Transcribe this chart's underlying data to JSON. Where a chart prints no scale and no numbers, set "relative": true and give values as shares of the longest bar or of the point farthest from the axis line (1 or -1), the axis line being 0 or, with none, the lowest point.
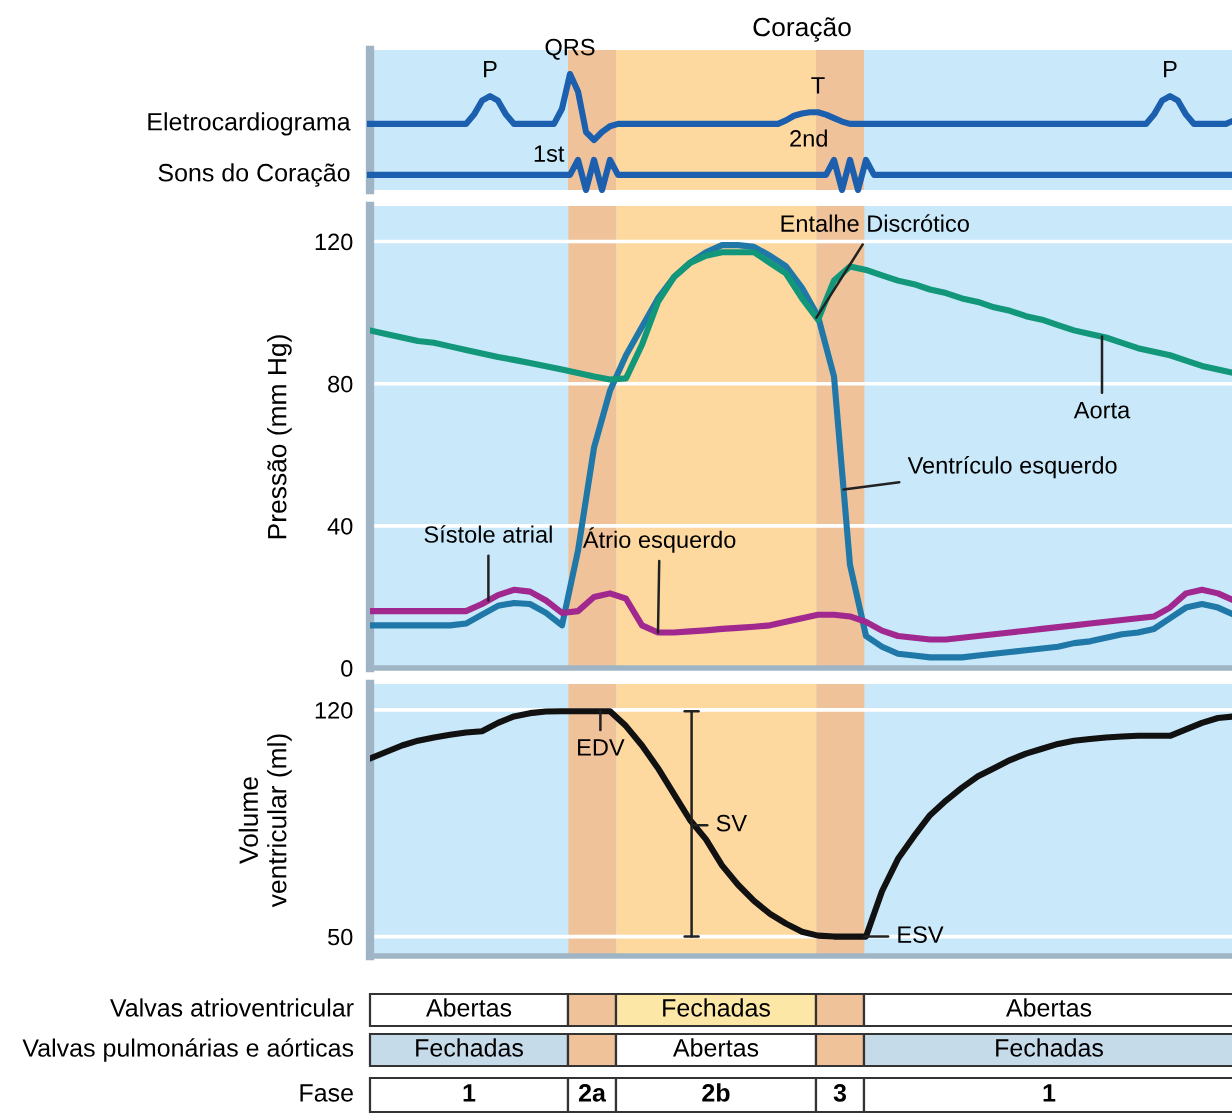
{
  "chart_data": [
    {
      "type": "line",
      "title": "Coração",
      "relative": true,
      "tick_labels": false,
      "categories": [
        null,
        null,
        null,
        null,
        null,
        null,
        null,
        null,
        null,
        null,
        null,
        null,
        null,
        null,
        null,
        null,
        null,
        null,
        null,
        null,
        null,
        null,
        null,
        null,
        null,
        null,
        null,
        null,
        null,
        null,
        null,
        null,
        null,
        null,
        null,
        null,
        null,
        null,
        null,
        null,
        null,
        null,
        null,
        null,
        null,
        null,
        null,
        null,
        null,
        null,
        null,
        null,
        null,
        null,
        null,
        null,
        null,
        null,
        null,
        null,
        null,
        null,
        null,
        null,
        null,
        null,
        null,
        null,
        null,
        null,
        null,
        null,
        null,
        null,
        null,
        null,
        null,
        null,
        null,
        null,
        null,
        null,
        null,
        null,
        null,
        null,
        null,
        null,
        null,
        null,
        null,
        null,
        null,
        null,
        null,
        null,
        null,
        null,
        null,
        null,
        null,
        null,
        null,
        null,
        null,
        null,
        null,
        null,
        null
      ],
      "series": [
        {
          "name": "Eletrocardiograma",
          "color": "#1b5fae",
          "values": [
            0.57,
            0.57,
            0.57,
            0.57,
            0.57,
            0.57,
            0.57,
            0.57,
            0.57,
            0.57,
            0.57,
            0.57,
            0.57,
            0.65,
            0.77,
            0.81,
            0.77,
            0.65,
            0.57,
            0.57,
            0.57,
            0.57,
            0.57,
            0.57,
            0.7,
            1.0,
            0.85,
            0.5,
            0.43,
            0.5,
            0.55,
            0.57,
            0.57,
            0.57,
            0.57,
            0.57,
            0.57,
            0.57,
            0.57,
            0.57,
            0.57,
            0.57,
            0.57,
            0.57,
            0.57,
            0.57,
            0.57,
            0.57,
            0.57,
            0.57,
            0.57,
            0.57,
            0.6,
            0.64,
            0.66,
            0.67,
            0.67,
            0.65,
            0.62,
            0.59,
            0.57,
            0.57,
            0.57,
            0.57,
            0.57,
            0.57,
            0.57,
            0.57,
            0.57,
            0.57,
            0.57,
            0.57,
            0.57,
            0.57,
            0.57,
            0.57,
            0.57,
            0.57,
            0.57,
            0.57,
            0.57,
            0.57,
            0.57,
            0.57,
            0.57,
            0.57,
            0.57,
            0.57,
            0.57,
            0.57,
            0.57,
            0.57,
            0.57,
            0.57,
            0.57,
            0.57,
            0.57,
            0.57,
            0.65,
            0.77,
            0.81,
            0.77,
            0.65,
            0.57,
            0.57,
            0.57,
            0.57,
            0.57,
            0.6
          ]
        },
        {
          "name": "Sons do Coração",
          "color": "#1b5fae",
          "values": [
            0.13,
            0.13,
            0.13,
            0.13,
            0.13,
            0.13,
            0.13,
            0.13,
            0.13,
            0.13,
            0.13,
            0.13,
            0.13,
            0.13,
            0.13,
            0.13,
            0.13,
            0.13,
            0.13,
            0.13,
            0.13,
            0.13,
            0.13,
            0.13,
            0.13,
            0.13,
            0.26,
            0,
            0.26,
            0,
            0.26,
            0.13,
            0.13,
            0.13,
            0.13,
            0.13,
            0.13,
            0.13,
            0.13,
            0.13,
            0.13,
            0.13,
            0.13,
            0.13,
            0.13,
            0.13,
            0.13,
            0.13,
            0.13,
            0.13,
            0.13,
            0.13,
            0.13,
            0.13,
            0.13,
            0.13,
            0.13,
            0.13,
            0.26,
            0,
            0.26,
            0,
            0.26,
            0.13,
            0.13,
            0.13,
            0.13,
            0.13,
            0.13,
            0.13,
            0.13,
            0.13,
            0.13,
            0.13,
            0.13,
            0.13,
            0.13,
            0.13,
            0.13,
            0.13,
            0.13,
            0.13,
            0.13,
            0.13,
            0.13,
            0.13,
            0.13,
            0.13,
            0.13,
            0.13,
            0.13,
            0.13,
            0.13,
            0.13,
            0.13,
            0.13,
            0.13,
            0.13,
            0.13,
            0.13,
            0.13,
            0.13,
            0.13,
            0.13,
            0.13,
            0.13,
            0.13,
            0.13,
            0.13
          ]
        }
      ],
      "annotations": [
        "P",
        "QRS",
        "T",
        "P",
        "1st",
        "2nd"
      ]
    },
    {
      "type": "line",
      "ylabel": "Pressão (mm Hg)",
      "ylim": [
        0,
        130
      ],
      "yticks": [
        0,
        40,
        80,
        120
      ],
      "grid": "y",
      "tick_labels": "y",
      "categories": [
        null,
        null,
        null,
        null,
        null,
        null,
        null,
        null,
        null,
        null,
        null,
        null,
        null,
        null,
        null,
        null,
        null,
        null,
        null,
        null,
        null,
        null,
        null,
        null,
        null,
        null,
        null,
        null,
        null,
        null,
        null,
        null,
        null,
        null,
        null,
        null,
        null,
        null,
        null,
        null,
        null,
        null,
        null,
        null,
        null,
        null,
        null,
        null,
        null,
        null,
        null,
        null,
        null,
        null,
        null
      ],
      "series": [
        {
          "name": "Aorta",
          "color": "#12977a",
          "values": [
            95,
            94,
            93,
            92,
            91.5,
            90.5,
            89.5,
            88.5,
            87.5,
            86.7,
            85.8,
            84.9,
            84,
            83,
            82,
            81.2,
            81.5,
            91,
            103,
            110,
            114,
            116,
            117,
            117,
            117,
            114,
            111,
            104,
            98,
            109,
            113,
            112,
            110.5,
            109,
            108,
            106.5,
            105.5,
            104,
            103,
            101.5,
            100.5,
            99,
            98,
            96.5,
            95,
            94,
            93,
            91.5,
            90,
            89,
            88,
            86.5,
            85,
            84,
            83
          ]
        },
        {
          "name": "Ventrículo esquerdo",
          "color": "#1f78a8",
          "values": [
            12,
            12,
            12,
            12,
            12,
            12,
            12.5,
            15,
            17.5,
            18.3,
            18,
            15.5,
            12,
            33,
            62,
            78,
            88,
            96,
            104,
            110,
            114,
            117,
            119,
            119,
            118.5,
            116,
            113,
            107,
            99,
            82,
            29,
            9,
            6,
            4,
            3.5,
            3,
            3,
            3,
            3.5,
            4,
            4.5,
            5,
            5.5,
            6,
            7,
            7.5,
            8.5,
            9.5,
            10,
            11,
            14,
            17,
            18,
            17,
            15
          ]
        },
        {
          "name": "Átrio esquerdo",
          "color": "#a0288f",
          "values": [
            16,
            16,
            16,
            16,
            16,
            16,
            16,
            18,
            20.5,
            22,
            21.5,
            19,
            15.5,
            16,
            20,
            21,
            19.5,
            12,
            10,
            10,
            10.3,
            10.6,
            11,
            11.3,
            11.6,
            12,
            13,
            14,
            15,
            15,
            14.5,
            13,
            10.5,
            9,
            8.5,
            8,
            8,
            8.5,
            9,
            9.5,
            10,
            10.5,
            11,
            11.5,
            12,
            12.5,
            13,
            13.5,
            14,
            14.5,
            17,
            21,
            22,
            21,
            19
          ]
        }
      ],
      "annotations": [
        "Entalhe Discrótico",
        "Sístole atrial"
      ]
    },
    {
      "type": "line",
      "ylabel": "Volume\nventricular (ml)",
      "ylim": [
        44,
        128
      ],
      "yticks": [
        50,
        120
      ],
      "grid": "y",
      "tick_labels": "y",
      "categories": [
        null,
        null,
        null,
        null,
        null,
        null,
        null,
        null,
        null,
        null,
        null,
        null,
        null,
        null,
        null,
        null,
        null,
        null,
        null,
        null,
        null,
        null,
        null,
        null,
        null,
        null,
        null,
        null,
        null,
        null,
        null,
        null,
        null,
        null,
        null,
        null,
        null,
        null,
        null,
        null,
        null,
        null,
        null,
        null,
        null,
        null,
        null,
        null,
        null,
        null,
        null,
        null,
        null,
        null,
        null
      ],
      "series": [
        {
          "color": "#111111",
          "values": [
            105,
            107,
            109,
            110.5,
            111.5,
            112.3,
            113,
            113.4,
            116,
            118,
            119,
            119.5,
            119.6,
            119.6,
            119.6,
            119.6,
            115,
            109,
            102,
            94,
            86,
            80,
            72,
            66,
            61,
            57,
            54,
            51.5,
            50.3,
            50,
            50,
            50,
            64,
            74,
            81,
            87.5,
            92,
            96,
            99.5,
            102,
            104.5,
            106.5,
            108,
            109.5,
            110.5,
            111,
            111.5,
            111.8,
            112,
            112,
            112,
            114,
            116,
            117.5,
            118
          ]
        }
      ],
      "annotations": [
        "EDV",
        "SV",
        "ESV"
      ]
    },
    {
      "type": "other",
      "annotations": [
        "Valvas atrioventricular",
        "Abertas",
        "Fechadas",
        "Abertas",
        "Valvas pulmonárias e aórticas",
        "Fechadas",
        "Abertas",
        "Fechadas",
        "Fase",
        "1",
        "2a",
        "2b",
        "3",
        "1"
      ]
    }
  ]
}
